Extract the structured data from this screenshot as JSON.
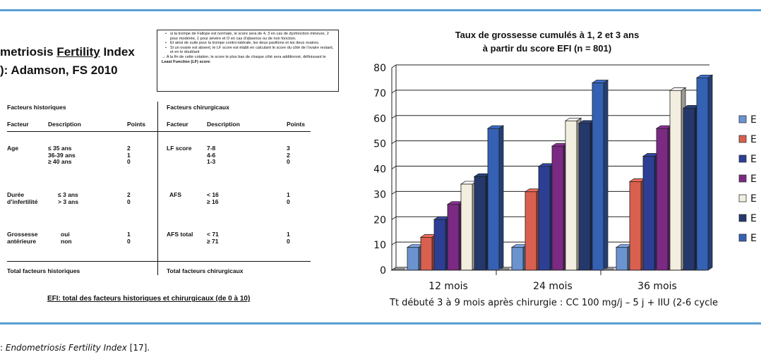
{
  "left_panel": {
    "title_line1_pre": "metriosis ",
    "title_line1_u": "Fertility",
    "title_line1_post": " Index",
    "title_line2": "): Adamson, FS 2010",
    "notes": [
      "si la trompe de Fallope est normale, le score sera de 4, 3 en cas de dysfonction mineure, 2 pour modérée, 1 pour sévère et O en cas d’absence ou de non fonction.",
      "Et ainsi de suite pour la trompe contro-latérale, les deux pavillons et les deux ovaires.",
      "Si un ovaire est absent, le LF score est établi en calculant le score du côté de l’ovaire restant, et en le doublant"
    ],
    "note_arrow": "→ A la fin de cette cotation, le score le plus bas de chaque côté sera additionné, définissant le ",
    "note_arrow_bold": "Least Function (LF) score",
    "note_arrow_end": ".",
    "table": {
      "hist_header": "Facteurs historiques",
      "chir_header": "Facteurs chirurgicaux",
      "col_factor": "Facteur",
      "col_desc": "Description",
      "col_points": "Points",
      "hist_rows": [
        {
          "factor": "Age",
          "desc": "≤ 35 ans\n36-39 ans\n≥ 40 ans",
          "points": "2\n1\n0"
        },
        {
          "factor": "Durée\nd’infertilité",
          "desc": "≤ 3 ans\n> 3 ans",
          "points": "2\n0"
        },
        {
          "factor": "Grossesse\nantérieure",
          "desc": "oui\nnon",
          "points": "1\n0"
        }
      ],
      "chir_rows": [
        {
          "factor": "LF score",
          "desc": "7-8\n4-6\n1-3",
          "points": "3\n2\n0"
        },
        {
          "factor": "AFS",
          "desc": "< 16\n≥ 16",
          "points": "1\n0"
        },
        {
          "factor": "AFS total",
          "desc": "< 71\n≥ 71",
          "points": "1\n0"
        }
      ],
      "hist_total": "Total facteurs historiques",
      "chir_total": "Total facteurs chirurgicaux"
    },
    "efi_total": "EFI: total des facteurs historiques et chirurgicaux (de 0 à 10)"
  },
  "chart_data": {
    "type": "bar",
    "title_line1": "Taux de grossesse cumulés à 1, 2 et 3 ans",
    "title_line2": "à partir du score EFI (n = 801)",
    "categories": [
      "12 mois",
      "24 mois",
      "36 mois"
    ],
    "ylim": [
      0,
      80
    ],
    "yticks": [
      0,
      10,
      20,
      30,
      40,
      50,
      60,
      70,
      80
    ],
    "grid": true,
    "legend_position": "right",
    "series": [
      {
        "name": "E",
        "color": "#6b93cf",
        "values": [
          9,
          9,
          9
        ]
      },
      {
        "name": "E",
        "color": "#d9604e",
        "values": [
          13,
          31,
          35
        ]
      },
      {
        "name": "E",
        "color": "#2c3f95",
        "values": [
          20,
          41,
          45
        ]
      },
      {
        "name": "E",
        "color": "#7b2a83",
        "values": [
          26,
          49,
          56
        ]
      },
      {
        "name": "E",
        "color": "#f3efe0",
        "values": [
          34,
          59,
          71
        ]
      },
      {
        "name": "E",
        "color": "#24386c",
        "values": [
          37,
          58,
          64
        ]
      },
      {
        "name": "E",
        "color": "#3561b4",
        "values": [
          56,
          74,
          76
        ]
      }
    ],
    "note": "Tt débuté 3 à 9 mois après chirurgie : CC 100 mg/j – 5 j + IIU (2-6 cycle"
  },
  "caption_pre": ": ",
  "caption_italic": "Endometriosis Fertility Index",
  "caption_post": " [17]."
}
